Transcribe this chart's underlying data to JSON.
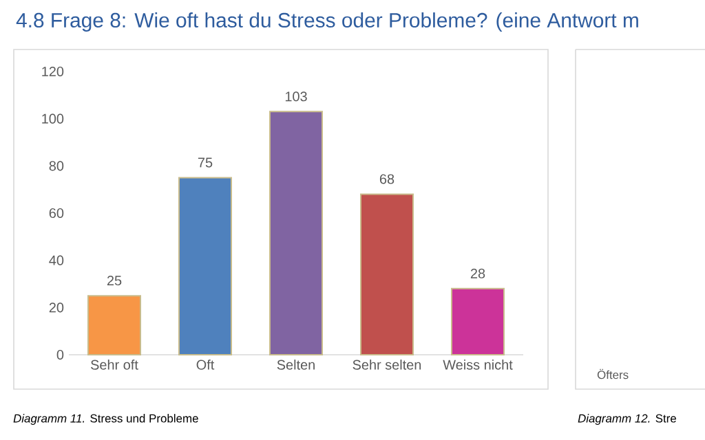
{
  "chart_data": [
    {
      "type": "bar",
      "title": "4.8 Frage 8: Wie oft hast du Stress oder Probleme? (eine Antwort m",
      "categories": [
        "Sehr oft",
        "Oft",
        "Selten",
        "Sehr selten",
        "Weiss nicht"
      ],
      "values": [
        25,
        75,
        103,
        68,
        28
      ],
      "colors": [
        "#f79646",
        "#4f81bd",
        "#8064a2",
        "#c0504d",
        "#cc3399"
      ],
      "ylim": [
        0,
        120
      ],
      "yticks": [
        0,
        20,
        40,
        60,
        80,
        100,
        120
      ],
      "data_labels": true,
      "grid": false,
      "annotations": [
        "*Diagramm 11.* Stress und Probleme"
      ]
    },
    {
      "type": "other",
      "annotations": [
        "Öfters",
        "*Diagramm 12.* Stre"
      ]
    }
  ]
}
